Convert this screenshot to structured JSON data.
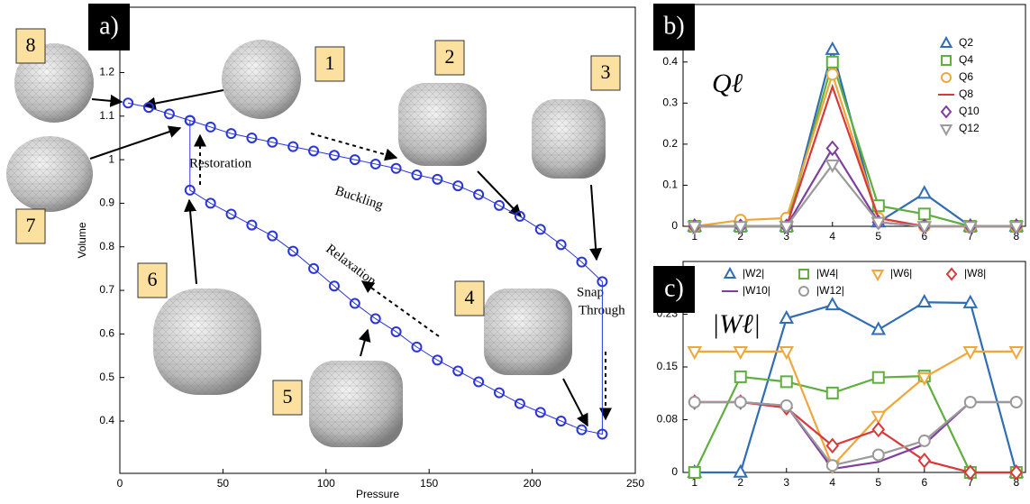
{
  "chart_data": [
    {
      "type": "line",
      "panel_label": "a)",
      "x_label": "Pressure",
      "y_label": "Volume",
      "xlim": [
        0,
        250
      ],
      "xticks": [
        0,
        50,
        100,
        150,
        200,
        250
      ],
      "ylim": [
        0.28,
        1.35
      ],
      "yticks": [
        0.4,
        0.5,
        0.6,
        0.7,
        0.8,
        0.9,
        1,
        1.1,
        1.2
      ],
      "color": "#2a35d8",
      "marker": "circle",
      "state_labels": [
        "1",
        "2",
        "3",
        "4",
        "5",
        "6",
        "7",
        "8"
      ],
      "annotations": [
        "Restoration",
        "Buckling",
        "Relaxation",
        "Snap",
        "Through"
      ],
      "x": [
        4,
        14,
        24,
        34,
        44,
        54,
        64,
        74,
        84,
        94,
        104,
        114,
        124,
        134,
        144,
        154,
        164,
        174,
        184,
        194,
        204,
        214,
        224,
        234,
        234,
        224,
        214,
        204,
        194,
        184,
        174,
        164,
        154,
        144,
        134,
        124,
        114,
        104,
        94,
        84,
        74,
        64,
        54,
        44,
        34,
        34
      ],
      "values": [
        1.13,
        1.12,
        1.105,
        1.09,
        1.075,
        1.06,
        1.05,
        1.04,
        1.03,
        1.02,
        1.01,
        1.0,
        0.99,
        0.98,
        0.965,
        0.955,
        0.94,
        0.92,
        0.895,
        0.87,
        0.84,
        0.805,
        0.765,
        0.72,
        0.37,
        0.38,
        0.4,
        0.42,
        0.44,
        0.465,
        0.49,
        0.515,
        0.54,
        0.57,
        0.605,
        0.635,
        0.67,
        0.71,
        0.75,
        0.79,
        0.825,
        0.85,
        0.875,
        0.9,
        0.93,
        1.09
      ]
    },
    {
      "type": "line",
      "panel_label": "b)",
      "title": "Qℓ",
      "legend": "upper right",
      "xlim": [
        0.75,
        8.2
      ],
      "xticks": [
        1,
        2,
        3,
        4,
        5,
        6,
        7,
        8
      ],
      "x": [
        1,
        2,
        3,
        4,
        5,
        6,
        7,
        8
      ],
      "ylim": [
        0,
        0.54
      ],
      "yticks": [
        0,
        0.1,
        0.2,
        0.3,
        0.4
      ],
      "series": [
        {
          "name": "Q2",
          "color": "#2f6db5",
          "marker": "triangle",
          "values": [
            0,
            0,
            0,
            0.43,
            0.01,
            0.08,
            0,
            0
          ]
        },
        {
          "name": "Q4",
          "color": "#5fae3e",
          "marker": "square",
          "values": [
            0,
            0,
            0,
            0.4,
            0.05,
            0.03,
            0,
            0
          ]
        },
        {
          "name": "Q6",
          "color": "#eea73a",
          "marker": "circle",
          "values": [
            0,
            0.015,
            0.02,
            0.37,
            0.02,
            0,
            0,
            0
          ]
        },
        {
          "name": "Q8",
          "color": "#d8393b",
          "marker": "none",
          "values": [
            0,
            0,
            0,
            0.34,
            0.02,
            0,
            0,
            0
          ]
        },
        {
          "name": "Q10",
          "color": "#7e3fa0",
          "marker": "diamond",
          "values": [
            0,
            0,
            0,
            0.19,
            0.01,
            0,
            0,
            0
          ]
        },
        {
          "name": "Q12",
          "color": "#9a9a9a",
          "marker": "down-triangle",
          "values": [
            0,
            0,
            0,
            0.15,
            0.01,
            0,
            0,
            0
          ]
        }
      ]
    },
    {
      "type": "line",
      "panel_label": "c)",
      "title": "|Wℓ|",
      "legend": "top",
      "xlim": [
        0.75,
        8.2
      ],
      "xticks": [
        1,
        2,
        3,
        4,
        5,
        6,
        7,
        8
      ],
      "x": [
        1,
        2,
        3,
        4,
        5,
        6,
        7,
        8
      ],
      "ylim": [
        0,
        0.3
      ],
      "yticks": [
        0,
        {
          "value": 0.075,
          "label": "0.08"
        },
        0.15,
        {
          "value": 0.225,
          "label": "0.23"
        }
      ],
      "series": [
        {
          "name": "|W2|",
          "color": "#2f6db5",
          "marker": "triangle",
          "values": [
            0,
            0,
            0.219,
            0.238,
            0.203,
            0.242,
            0.241,
            0
          ]
        },
        {
          "name": "|W4|",
          "color": "#5fae3e",
          "marker": "square",
          "values": [
            0,
            0.136,
            0.129,
            0.113,
            0.135,
            0.137,
            0,
            0
          ]
        },
        {
          "name": "|W6|",
          "color": "#eea73a",
          "marker": "down-triangle",
          "values": [
            0.172,
            0.172,
            0.172,
            0.009,
            0.08,
            0.135,
            0.172,
            0.172
          ]
        },
        {
          "name": "|W8|",
          "color": "#d8393b",
          "marker": "diamond",
          "values": [
            0.1,
            0.1,
            0.092,
            0.038,
            0.061,
            0.017,
            0,
            0
          ]
        },
        {
          "name": "|W10|",
          "color": "#7e3fa0",
          "marker": "none",
          "values": [
            0.1,
            0.1,
            0.095,
            0.005,
            0.015,
            0.04,
            0.1,
            0.1
          ]
        },
        {
          "name": "|W12|",
          "color": "#9a9a9a",
          "marker": "circle",
          "values": [
            0.1,
            0.1,
            0.095,
            0.01,
            0.025,
            0.045,
            0.1,
            0.1
          ]
        }
      ]
    }
  ]
}
